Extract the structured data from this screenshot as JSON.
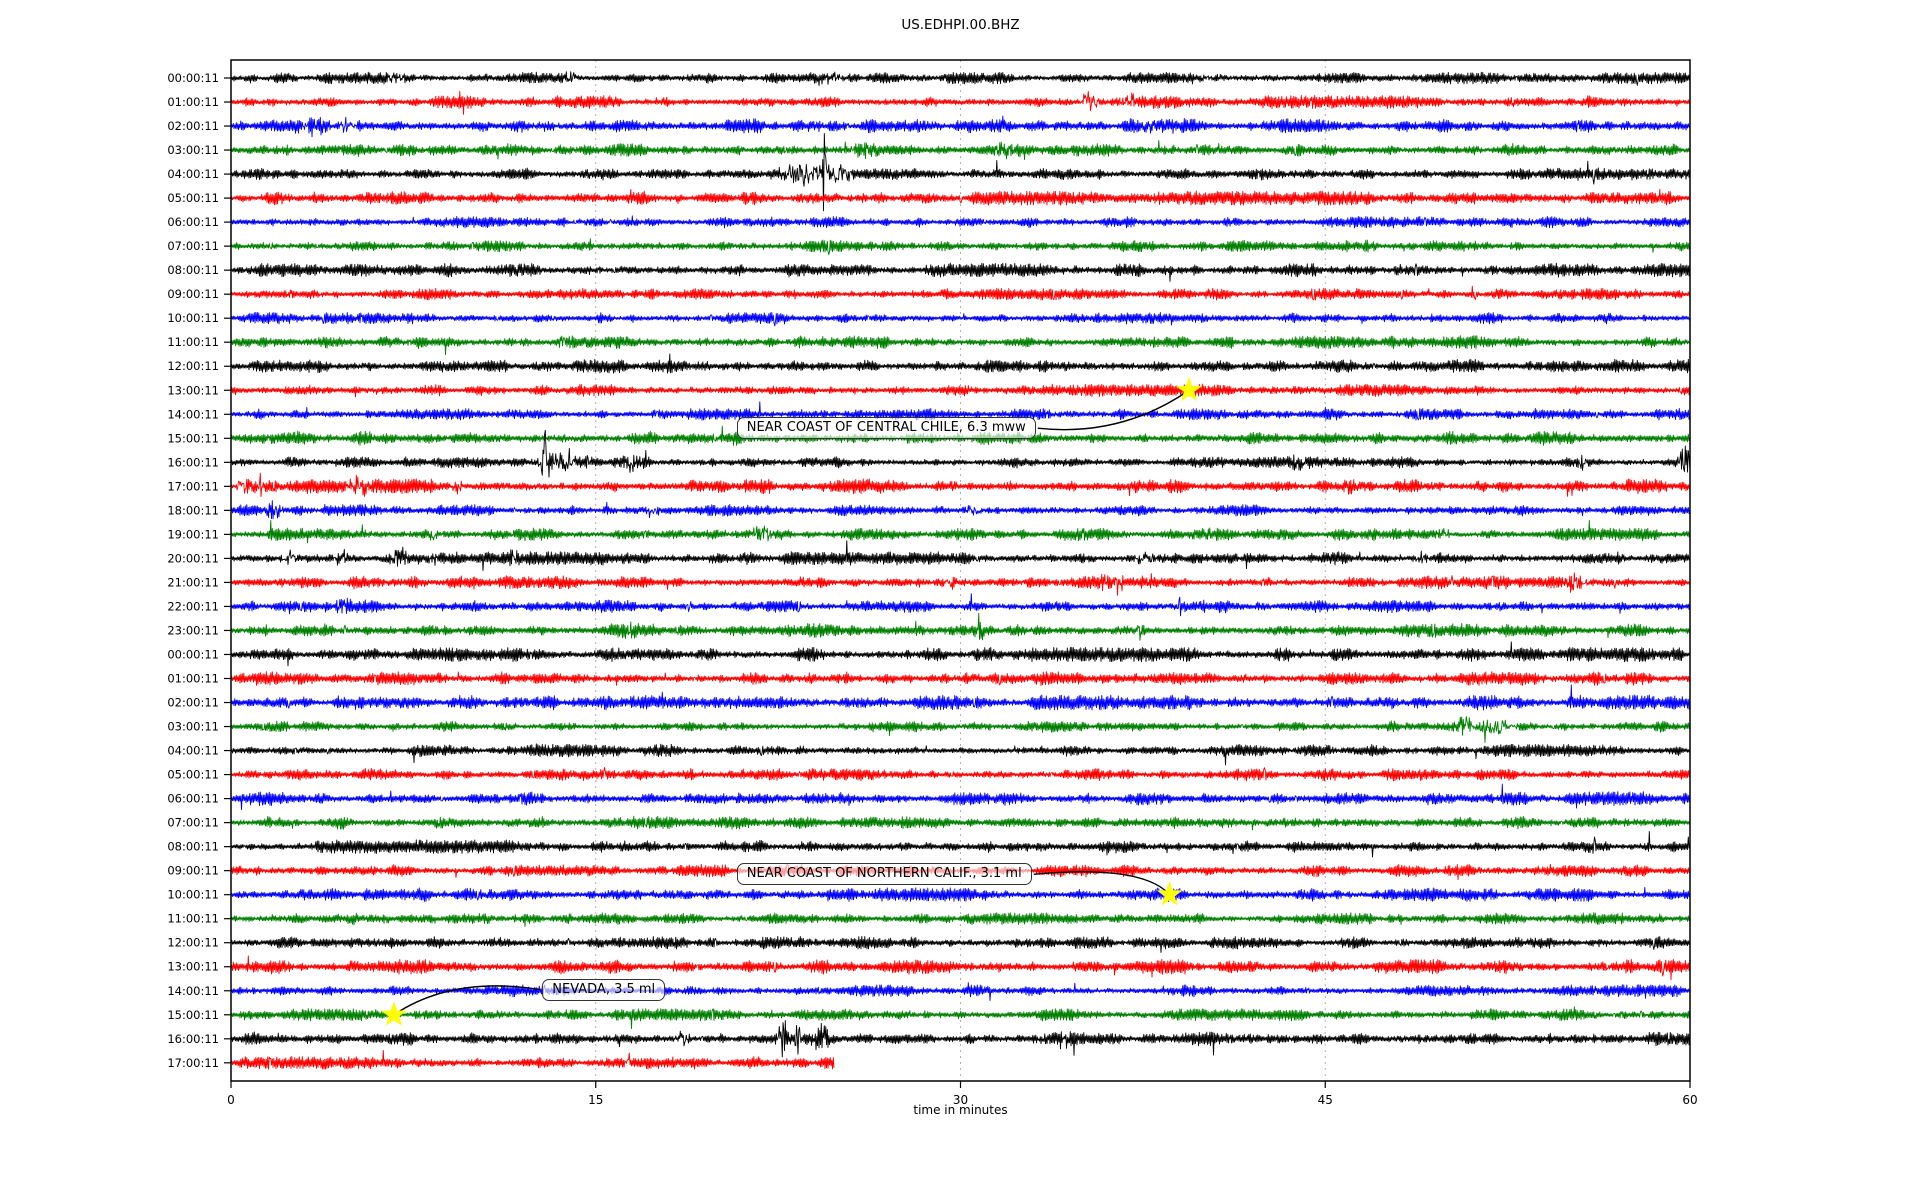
{
  "chart_data": {
    "type": "line",
    "subtype": "helicorder-dayplot",
    "title": "US.EDHPI.00.BHZ",
    "xlabel": "time in minutes",
    "x_range": [
      0,
      60
    ],
    "x_ticks": [
      0,
      15,
      30,
      45,
      60
    ],
    "grid_minutes": [
      15,
      30,
      45
    ],
    "grid_color": "#b0b0b0",
    "trace_color_cycle": [
      "#000000",
      "#ff0000",
      "#0000ff",
      "#008000"
    ],
    "star_color": "#ffff00",
    "minutes_per_row": 60,
    "rows": [
      {
        "label": "00:00:11",
        "bursts": [
          [
            6.8,
            4,
            0.5
          ],
          [
            14,
            5,
            0.25
          ],
          [
            24.5,
            4,
            0.6
          ],
          [
            40,
            3,
            0.8
          ]
        ]
      },
      {
        "label": "01:00:11",
        "bursts": [
          [
            35.3,
            9,
            0.35
          ],
          [
            36.9,
            8,
            0.25
          ]
        ]
      },
      {
        "label": "02:00:11",
        "bursts": [
          [
            3.4,
            7,
            0.5
          ],
          [
            4.8,
            6,
            0.35
          ],
          [
            38,
            3,
            0.8
          ]
        ]
      },
      {
        "label": "03:00:11",
        "bursts": [
          [
            26,
            5,
            0.6
          ],
          [
            31.8,
            6,
            0.4
          ]
        ]
      },
      {
        "label": "04:00:11",
        "bursts": [
          [
            23.5,
            12,
            0.8
          ],
          [
            24.4,
            55,
            0.06
          ],
          [
            25.1,
            8,
            0.5
          ]
        ]
      },
      {
        "label": "05:00:11",
        "bursts": []
      },
      {
        "label": "06:00:11",
        "bursts": []
      },
      {
        "label": "07:00:11",
        "bursts": []
      },
      {
        "label": "08:00:11",
        "bursts": []
      },
      {
        "label": "09:00:11",
        "bursts": []
      },
      {
        "label": "10:00:11",
        "bursts": []
      },
      {
        "label": "11:00:11",
        "bursts": []
      },
      {
        "label": "12:00:11",
        "bursts": []
      },
      {
        "label": "13:00:11",
        "bursts": []
      },
      {
        "label": "14:00:11",
        "bursts": []
      },
      {
        "label": "15:00:11",
        "bursts": []
      },
      {
        "label": "16:00:11",
        "bursts": [
          [
            12.9,
            26,
            0.12
          ],
          [
            13.2,
            12,
            0.45
          ],
          [
            13.9,
            9,
            0.25
          ],
          [
            14.7,
            11,
            0.08
          ],
          [
            16.5,
            6,
            0.35
          ],
          [
            44,
            5,
            0.4
          ],
          [
            55.6,
            6,
            0.25
          ],
          [
            59.8,
            15,
            0.25
          ]
        ]
      },
      {
        "label": "17:00:11",
        "bursts": [
          [
            0.6,
            6,
            0.4
          ],
          [
            1.2,
            10,
            0.08
          ],
          [
            5.2,
            6,
            0.5
          ],
          [
            9.3,
            5,
            0.2
          ],
          [
            46,
            4,
            0.3
          ]
        ]
      },
      {
        "label": "18:00:11",
        "bursts": [
          [
            1.8,
            8,
            0.3
          ],
          [
            17.3,
            6,
            0.25
          ],
          [
            30.5,
            4,
            0.3
          ]
        ]
      },
      {
        "label": "19:00:11",
        "bursts": [
          [
            8.3,
            5,
            0.2
          ],
          [
            21.8,
            8,
            0.35
          ],
          [
            40,
            5,
            0.3
          ],
          [
            49.8,
            4,
            0.3
          ]
        ]
      },
      {
        "label": "20:00:11",
        "bursts": [
          [
            2.4,
            6,
            0.35
          ],
          [
            4.5,
            5,
            0.25
          ],
          [
            6.9,
            7,
            0.35
          ],
          [
            8.4,
            6,
            0.25
          ],
          [
            11.7,
            6,
            0.25
          ],
          [
            37.6,
            5,
            0.4
          ],
          [
            49,
            4,
            0.3
          ]
        ]
      },
      {
        "label": "21:00:11",
        "bursts": [
          [
            29.6,
            7,
            0.2
          ],
          [
            35.9,
            7,
            0.12
          ],
          [
            36.5,
            10,
            0.15
          ],
          [
            37.8,
            5,
            0.1
          ],
          [
            55.3,
            7,
            0.4
          ]
        ]
      },
      {
        "label": "22:00:11",
        "bursts": [
          [
            4.6,
            5,
            0.3
          ],
          [
            18.8,
            7,
            0.12
          ],
          [
            39,
            8,
            0.1
          ]
        ]
      },
      {
        "label": "23:00:11",
        "bursts": [
          [
            16.4,
            5,
            0.2
          ],
          [
            30.8,
            6,
            0.15
          ],
          [
            37.4,
            8,
            0.12
          ]
        ]
      },
      {
        "label": "00:00:11",
        "bursts": []
      },
      {
        "label": "01:00:11",
        "bursts": []
      },
      {
        "label": "02:00:11",
        "bursts": []
      },
      {
        "label": "03:00:11",
        "bursts": [
          [
            50.7,
            9,
            0.4
          ],
          [
            51.5,
            48,
            0.06
          ],
          [
            52.1,
            7,
            0.6
          ]
        ]
      },
      {
        "label": "04:00:11",
        "bursts": []
      },
      {
        "label": "05:00:11",
        "bursts": []
      },
      {
        "label": "06:00:11",
        "bursts": []
      },
      {
        "label": "07:00:11",
        "bursts": []
      },
      {
        "label": "08:00:11",
        "bursts": []
      },
      {
        "label": "09:00:11",
        "bursts": []
      },
      {
        "label": "10:00:11",
        "bursts": []
      },
      {
        "label": "11:00:11",
        "bursts": []
      },
      {
        "label": "12:00:11",
        "bursts": []
      },
      {
        "label": "13:00:11",
        "bursts": []
      },
      {
        "label": "14:00:11",
        "bursts": []
      },
      {
        "label": "15:00:11",
        "bursts": []
      },
      {
        "label": "16:00:11",
        "bursts": [
          [
            18.6,
            8,
            0.25
          ],
          [
            22.7,
            28,
            0.18
          ],
          [
            23.3,
            22,
            0.12
          ],
          [
            24.3,
            10,
            0.3
          ],
          [
            34,
            4,
            1.0
          ]
        ]
      },
      {
        "label": "17:00:11",
        "bursts": [
          [
            16.3,
            9,
            0.12
          ]
        ],
        "end_minute": 24.8
      }
    ],
    "annotations": [
      {
        "text": "NEAR COAST OF CENTRAL CHILE, 6.3 mww",
        "star_row": 13,
        "star_minute": 39.4,
        "box_row": 14.58,
        "box_left_minute": 20.8,
        "anchor": "right"
      },
      {
        "text": "NEAR COAST OF NORTHERN CALIF., 3.1 ml",
        "star_row": 34,
        "star_minute": 38.6,
        "box_row": 33.15,
        "box_left_minute": 20.8,
        "anchor": "right"
      },
      {
        "text": "NEVADA, 3.5 ml",
        "star_row": 39,
        "star_minute": 6.7,
        "box_row": 37.95,
        "box_left_minute": 12.8,
        "anchor": "left"
      }
    ]
  }
}
